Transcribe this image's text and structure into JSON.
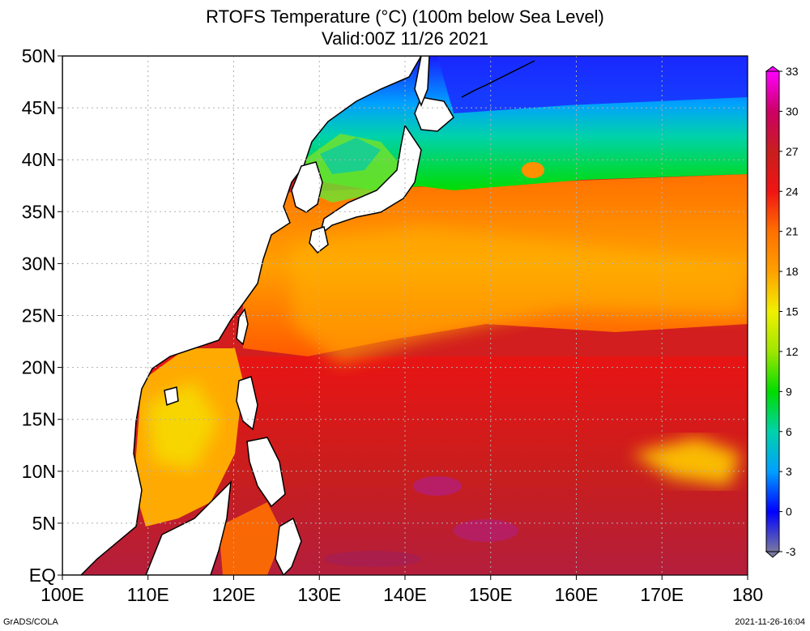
{
  "title": {
    "line1": "RTOFS Temperature (°C) (100m below Sea Level)",
    "line2": "Valid:00Z 11/26 2021"
  },
  "map": {
    "lon_ticks": [
      "100E",
      "110E",
      "120E",
      "130E",
      "140E",
      "150E",
      "160E",
      "170E",
      "180"
    ],
    "lat_ticks": [
      "EQ",
      "5N",
      "10N",
      "15N",
      "20N",
      "25N",
      "30N",
      "35N",
      "40N",
      "45N",
      "50N"
    ],
    "lon_range": [
      100,
      180
    ],
    "lat_range": [
      0,
      50
    ],
    "grid": "dotted",
    "land_fill": "#ffffff",
    "coastline_color": "#000000"
  },
  "colorbar": {
    "labels": [
      "33",
      "30",
      "27",
      "24",
      "21",
      "18",
      "15",
      "12",
      "9",
      "6",
      "3",
      "0",
      "-3"
    ],
    "stops": [
      {
        "value": 33,
        "color": "#ff00ff"
      },
      {
        "value": 30,
        "color": "#cc0066"
      },
      {
        "value": 27,
        "color": "#c81e1e"
      },
      {
        "value": 24,
        "color": "#f01414"
      },
      {
        "value": 21,
        "color": "#ff7000"
      },
      {
        "value": 18,
        "color": "#ffa000"
      },
      {
        "value": 15,
        "color": "#f0f000"
      },
      {
        "value": 12,
        "color": "#a0e600"
      },
      {
        "value": 9,
        "color": "#00dc00"
      },
      {
        "value": 6,
        "color": "#00d2aa"
      },
      {
        "value": 3,
        "color": "#00a0ff"
      },
      {
        "value": 0,
        "color": "#0000ff"
      },
      {
        "value": -3,
        "color": "#7878a0"
      }
    ]
  },
  "footer": {
    "left": "GrADS/COLA",
    "right": "2021-11-26-16:04"
  }
}
